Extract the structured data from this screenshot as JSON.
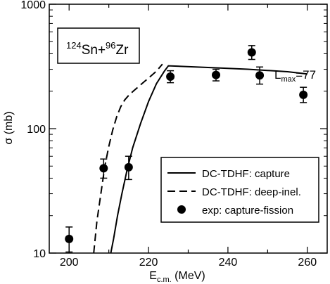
{
  "chart_data": {
    "type": "line",
    "xlabel_main": "E",
    "xlabel_sub": "c.m.",
    "xlabel_unit": " (MeV)",
    "ylabel": "σ (mb)",
    "xlim": [
      195,
      265
    ],
    "ylim": [
      10,
      1000
    ],
    "yscale": "log",
    "x_ticks": [
      200,
      210,
      220,
      230,
      240,
      250,
      260
    ],
    "x_tick_labels": [
      "200",
      "220",
      "240",
      "260"
    ],
    "y_ticks": [
      10,
      100,
      1000
    ],
    "y_tick_labels": [
      "10",
      "100",
      "1000"
    ],
    "grid": false,
    "annotation_system": {
      "a1": "124",
      "e1": "Sn+",
      "a2": "96",
      "e2": "Zr"
    },
    "annotation_lmax": {
      "main": "L",
      "sub": "max",
      "value": "=77"
    },
    "legend": {
      "placement": "bottom-right",
      "entries": [
        {
          "label": "DC-TDHF: capture",
          "style": "solid"
        },
        {
          "label": "DC-TDHF: deep-inel.",
          "style": "dashed"
        },
        {
          "label": "exp: capture-fission",
          "style": "marker"
        }
      ]
    },
    "series": [
      {
        "name": "DC-TDHF: capture",
        "style": "solid",
        "x": [
          210.5,
          211.2,
          212.2,
          213.3,
          214.5,
          216,
          218,
          220,
          222,
          224,
          225,
          235,
          245,
          255,
          260
        ],
        "y": [
          10,
          13,
          20,
          30,
          45,
          70,
          110,
          165,
          230,
          290,
          320,
          310,
          300,
          287,
          275
        ]
      },
      {
        "name": "DC-TDHF: deep-inel.",
        "style": "dashed",
        "x": [
          206.2,
          207,
          208,
          209,
          210,
          211,
          212,
          213,
          214,
          215,
          216,
          218,
          220,
          222,
          223.5
        ],
        "y": [
          10,
          18,
          30,
          50,
          72,
          98,
          125,
          150,
          170,
          185,
          198,
          225,
          255,
          290,
          330
        ]
      },
      {
        "name": "exp: capture-fission",
        "style": "marker",
        "x": [
          200,
          208.7,
          215,
          225.5,
          237,
          246,
          248,
          259
        ],
        "y": [
          13,
          48,
          49,
          262,
          270,
          410,
          268,
          187
        ],
        "yerr_low": [
          2.8,
          8,
          10,
          28,
          28,
          50,
          40,
          25
        ],
        "yerr_high": [
          3.2,
          9,
          11,
          30,
          30,
          55,
          45,
          28
        ]
      }
    ]
  }
}
